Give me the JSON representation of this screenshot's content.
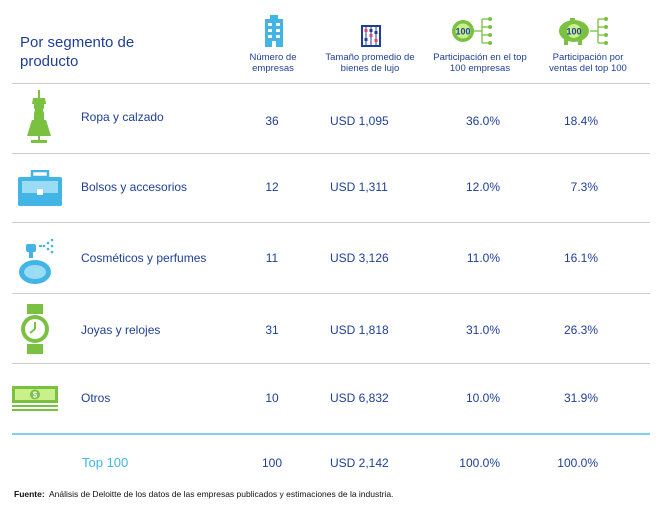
{
  "header": {
    "title": "Por segmento de producto",
    "col1": "Número de empresas",
    "col2": "Tamaño promedio de bienes de lujo",
    "col3": "Participación en el top 100 empresas",
    "col4": "Participación por ventas del top 100",
    "badge100": "100"
  },
  "rows": [
    {
      "label": "Ropa y calzado",
      "count": "36",
      "avg": "USD 1,095",
      "share_companies": "36.0%",
      "share_sales": "18.4%",
      "icon": "dress-icon"
    },
    {
      "label": "Bolsos y accesorios",
      "count": "12",
      "avg": "USD 1,311",
      "share_companies": "12.0%",
      "share_sales": "7.3%",
      "icon": "briefcase-icon"
    },
    {
      "label": "Cosméticos y perfumes",
      "count": "11",
      "avg": "USD 3,126",
      "share_companies": "11.0%",
      "share_sales": "16.1%",
      "icon": "perfume-icon"
    },
    {
      "label": "Joyas y relojes",
      "count": "31",
      "avg": "USD 1,818",
      "share_companies": "31.0%",
      "share_sales": "26.3%",
      "icon": "watch-icon"
    },
    {
      "label": "Otros",
      "count": "10",
      "avg": "USD 6,832",
      "share_companies": "10.0%",
      "share_sales": "31.9%",
      "icon": "money-icon"
    }
  ],
  "total": {
    "label": "Top 100",
    "count": "100",
    "avg": "USD 2,142",
    "share_companies": "100.0%",
    "share_sales": "100.0%"
  },
  "source": {
    "prefix": "Fuente:",
    "text": "Análisis de Deloitte de los datos de las empresas publicados y estimaciones de la industria."
  },
  "colors": {
    "accent_green": "#7ac142",
    "accent_blue": "#42b4e6",
    "text_blue": "#1f3f95"
  }
}
